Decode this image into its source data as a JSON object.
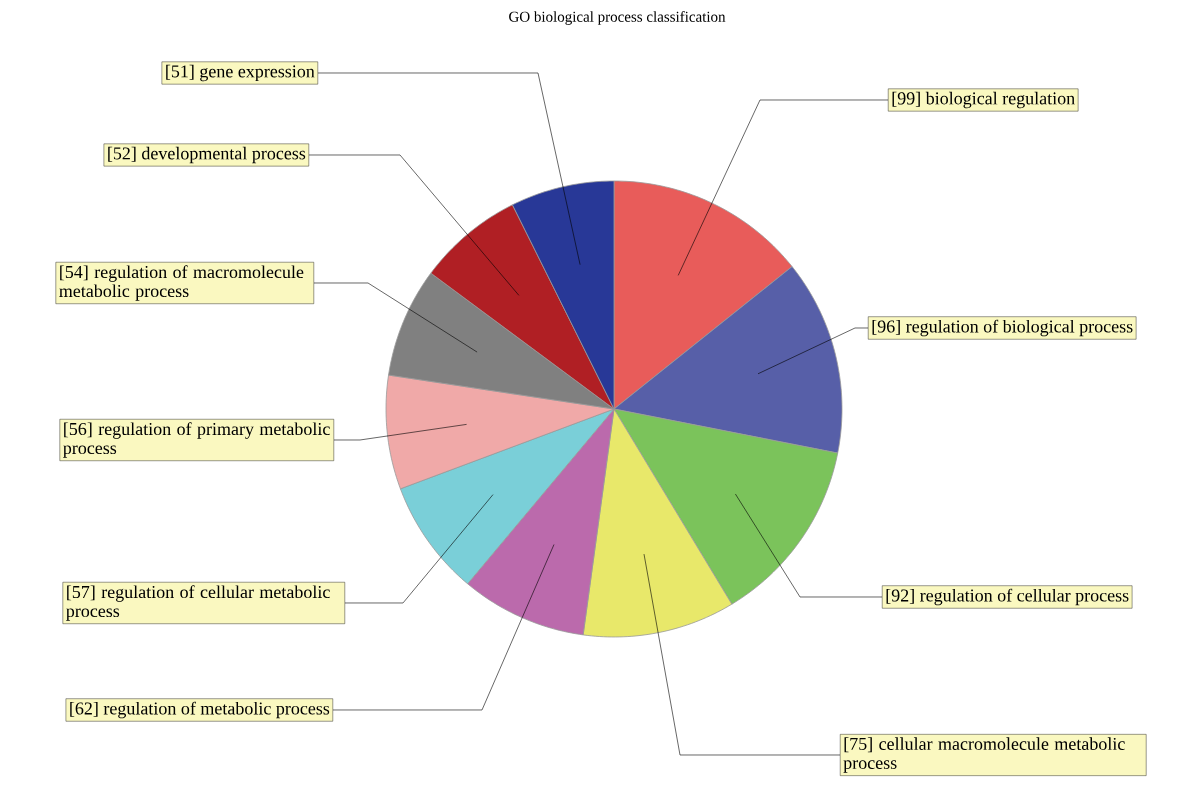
{
  "chart_data": {
    "type": "pie",
    "title": "GO biological process classification",
    "categories": [
      "biological regulation",
      "regulation of biological process",
      "regulation of cellular process",
      "cellular macromolecule metabolic process",
      "regulation of metabolic process",
      "regulation of cellular metabolic process",
      "regulation of primary metabolic process",
      "regulation of macromolecule metabolic process",
      "developmental process",
      "gene expression"
    ],
    "values": [
      99,
      96,
      92,
      75,
      62,
      57,
      56,
      54,
      52,
      51
    ],
    "colors": [
      "#e85c5a",
      "#575fa8",
      "#7bc35b",
      "#e8e86a",
      "#bb6aac",
      "#7acfd8",
      "#f0a9a8",
      "#808080",
      "#b01f24",
      "#283897"
    ],
    "value_labels": [
      "[99]",
      "[96]",
      "[92]",
      "[75]",
      "[62]",
      "[57]",
      "[56]",
      "[54]",
      "[52]",
      "[51]"
    ]
  }
}
